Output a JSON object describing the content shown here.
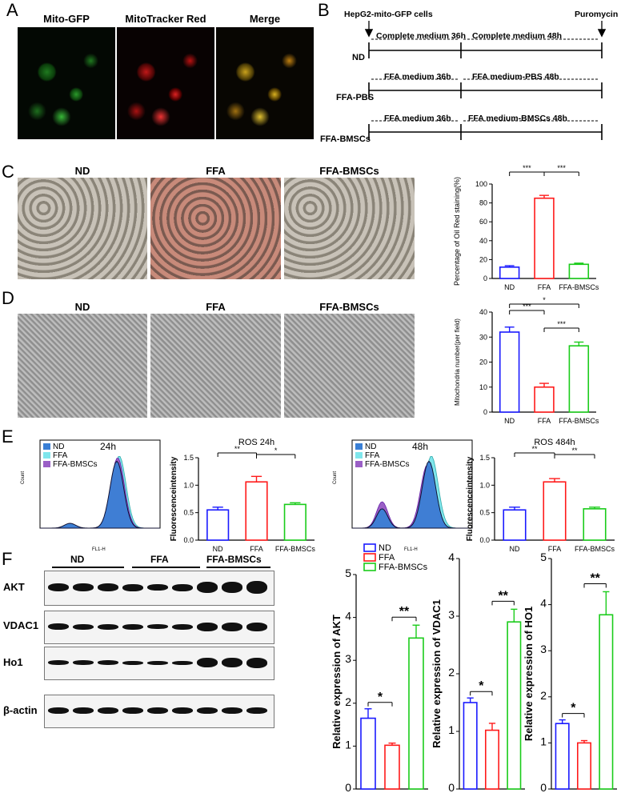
{
  "panels": {
    "A": "A",
    "B": "B",
    "C": "C",
    "D": "D",
    "E": "E",
    "F": "F"
  },
  "panelA": {
    "headers": [
      "Mito-GFP",
      "MitoTracker Red",
      "Merge"
    ]
  },
  "panelB": {
    "cells_label": "HepG2-mito-GFP cells",
    "puromycin": "Puromycin",
    "rows": [
      {
        "name": "ND",
        "left": "Complete medium 36h",
        "right": "Complete medium 48h"
      },
      {
        "name": "FFA-PBS",
        "left": "FFA medium 36h",
        "right": "FFA medium-PBS 48h"
      },
      {
        "name": "FFA-BMSCs",
        "left": "FFA medium 36h",
        "right": "FFA medium-BMSCs 48h"
      }
    ]
  },
  "panelC": {
    "headers": [
      "ND",
      "FFA",
      "FFA-BMSCs"
    ]
  },
  "panelD": {
    "headers": [
      "ND",
      "FFA",
      "FFA-BMSCs"
    ]
  },
  "panelE": {
    "flow1_time": "24h",
    "flow2_time": "48h",
    "legend": [
      "ND",
      "FFA",
      "FFA-BMSCs"
    ],
    "xlabel": "FL1-H",
    "ylabel": "Count"
  },
  "panelF": {
    "groups": [
      "ND",
      "FFA",
      "FFA-BMSCs"
    ],
    "proteins": [
      "AKT",
      "VDAC1",
      "Ho1",
      "β-actin"
    ],
    "legend": [
      "ND",
      "FFA",
      "FFA-BMSCs"
    ]
  },
  "colors": {
    "ND": "#1a1aff",
    "FFA": "#ff1a1a",
    "BMSC": "#1acc1a",
    "flowND": "#3a7fd5",
    "flowFFA": "#7fe6ec",
    "flowBMSC": "#9a5fc6"
  },
  "chart_data": [
    {
      "type": "bar",
      "id": "oilred",
      "categories": [
        "ND",
        "FFA",
        "FFA-BMSCs"
      ],
      "values": [
        12,
        85,
        15
      ],
      "errors": [
        1.5,
        3,
        1.2
      ],
      "ylabel": "Percentage of Oil Red staining(%)",
      "ylim": [
        0,
        100
      ],
      "yticks": [
        0,
        20,
        40,
        60,
        80,
        100
      ],
      "significance": [
        {
          "a": 0,
          "b": 1,
          "label": "***"
        },
        {
          "a": 1,
          "b": 2,
          "label": "***"
        }
      ]
    },
    {
      "type": "bar",
      "id": "mito",
      "categories": [
        "ND",
        "FFA",
        "FFA-BMSCs"
      ],
      "values": [
        32,
        10,
        26.5
      ],
      "errors": [
        2,
        1.5,
        1.5
      ],
      "ylabel": "Mitochondria number(per field)",
      "ylim": [
        0,
        40
      ],
      "yticks": [
        0,
        10,
        20,
        30,
        40
      ],
      "significance": [
        {
          "a": 0,
          "b": 1,
          "label": "***"
        },
        {
          "a": 1,
          "b": 2,
          "label": "***"
        },
        {
          "a": 0,
          "b": 2,
          "label": "*"
        }
      ]
    },
    {
      "type": "bar",
      "id": "ros24",
      "title": "ROS 24h",
      "categories": [
        "ND",
        "FFA",
        "FFA-BMSCs"
      ],
      "values": [
        0.55,
        1.06,
        0.65
      ],
      "errors": [
        0.05,
        0.1,
        0.03
      ],
      "ylabel": "Fluorescenceintensity",
      "ylim": [
        0,
        1.5
      ],
      "yticks": [
        "0.0",
        "0.5",
        "1.0",
        "1.5"
      ],
      "significance": [
        {
          "a": 0,
          "b": 1,
          "label": "**"
        },
        {
          "a": 1,
          "b": 2,
          "label": "*"
        }
      ]
    },
    {
      "type": "bar",
      "id": "ros48",
      "title": "ROS 484h",
      "categories": [
        "ND",
        "FFA",
        "FFA-BMSCs"
      ],
      "values": [
        0.55,
        1.06,
        0.57
      ],
      "errors": [
        0.05,
        0.06,
        0.03
      ],
      "ylabel": "Fluorescenceintensity",
      "ylim": [
        0,
        1.5
      ],
      "yticks": [
        "0.0",
        "0.5",
        "1.0",
        "1.5"
      ],
      "significance": [
        {
          "a": 0,
          "b": 1,
          "label": "**"
        },
        {
          "a": 1,
          "b": 2,
          "label": "**"
        }
      ]
    },
    {
      "type": "bar",
      "id": "akt",
      "categories": [
        "ND",
        "FFA",
        "FFA-BMSCs"
      ],
      "values": [
        1.65,
        1.02,
        3.52
      ],
      "errors": [
        0.22,
        0.05,
        0.3
      ],
      "ylabel": "Relative expression of AKT",
      "ylim": [
        0,
        5
      ],
      "yticks": [
        0,
        1,
        2,
        3,
        4,
        5
      ],
      "significance": [
        {
          "a": 0,
          "b": 1,
          "label": "*"
        },
        {
          "a": 1,
          "b": 2,
          "label": "**"
        }
      ]
    },
    {
      "type": "bar",
      "id": "vdac1",
      "categories": [
        "ND",
        "FFA",
        "FFA-BMSCs"
      ],
      "values": [
        1.5,
        1.02,
        2.9
      ],
      "errors": [
        0.08,
        0.12,
        0.22
      ],
      "ylabel": "Relative expression of VDAC1",
      "ylim": [
        0,
        4
      ],
      "yticks": [
        0,
        1,
        2,
        3,
        4
      ],
      "significance": [
        {
          "a": 0,
          "b": 1,
          "label": "*"
        },
        {
          "a": 1,
          "b": 2,
          "label": "**"
        }
      ]
    },
    {
      "type": "bar",
      "id": "ho1",
      "categories": [
        "ND",
        "FFA",
        "FFA-BMSCs"
      ],
      "values": [
        1.42,
        1.0,
        3.78
      ],
      "errors": [
        0.08,
        0.05,
        0.5
      ],
      "ylabel": "Relative expression of HO1",
      "ylim": [
        0,
        5
      ],
      "yticks": [
        0,
        1,
        2,
        3,
        4,
        5
      ],
      "significance": [
        {
          "a": 0,
          "b": 1,
          "label": "*"
        },
        {
          "a": 1,
          "b": 2,
          "label": "**"
        }
      ]
    }
  ]
}
